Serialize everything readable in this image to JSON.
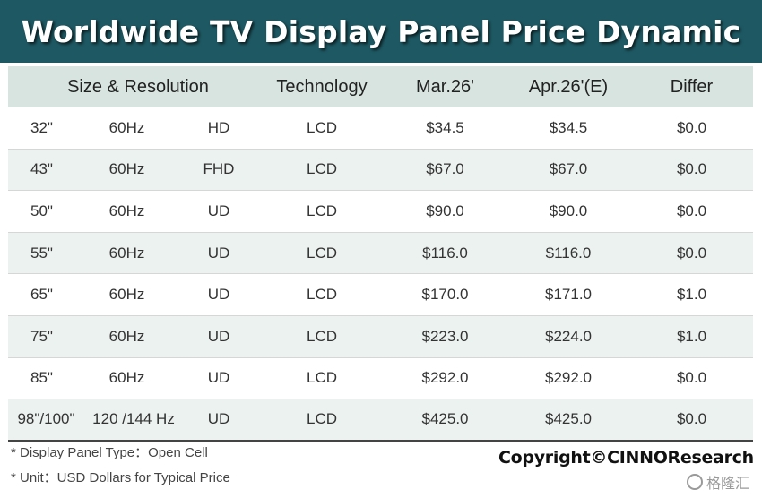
{
  "title": "Worldwide TV Display Panel Price Dynamic",
  "table": {
    "headers": {
      "size_resolution": "Size & Resolution",
      "technology": "Technology",
      "mar": "Mar.26'",
      "apr": "Apr.26'(E)",
      "differ": "Differ"
    },
    "rows": [
      {
        "size": "32\"",
        "hz": "60Hz",
        "res": "HD",
        "tech": "LCD",
        "mar": "$34.5",
        "apr": "$34.5",
        "differ": "$0.0"
      },
      {
        "size": "43\"",
        "hz": "60Hz",
        "res": "FHD",
        "tech": "LCD",
        "mar": "$67.0",
        "apr": "$67.0",
        "differ": "$0.0"
      },
      {
        "size": "50\"",
        "hz": "60Hz",
        "res": "UD",
        "tech": "LCD",
        "mar": "$90.0",
        "apr": "$90.0",
        "differ": "$0.0"
      },
      {
        "size": "55\"",
        "hz": "60Hz",
        "res": "UD",
        "tech": "LCD",
        "mar": "$116.0",
        "apr": "$116.0",
        "differ": "$0.0"
      },
      {
        "size": "65\"",
        "hz": "60Hz",
        "res": "UD",
        "tech": "LCD",
        "mar": "$170.0",
        "apr": "$171.0",
        "differ": "$1.0"
      },
      {
        "size": "75\"",
        "hz": "60Hz",
        "res": "UD",
        "tech": "LCD",
        "mar": "$223.0",
        "apr": "$224.0",
        "differ": "$1.0"
      },
      {
        "size": "85\"",
        "hz": "60Hz",
        "res": "UD",
        "tech": "LCD",
        "mar": "$292.0",
        "apr": "$292.0",
        "differ": "$0.0"
      },
      {
        "size": "98\"/100\"",
        "hz": "120 /144 Hz",
        "res": "UD",
        "tech": "LCD",
        "mar": "$425.0",
        "apr": "$425.0",
        "differ": "$0.0"
      }
    ]
  },
  "footnotes": {
    "panel_type": "* Display Panel Type：Open Cell",
    "unit": "* Unit：USD Dollars for Typical Price"
  },
  "copyright": "Copyright©CINNOResearch",
  "watermark": "格隆汇",
  "colors": {
    "title_bg": "#1e5963",
    "header_bg": "#d8e4e0",
    "alt_row_bg": "#ecf2f0"
  }
}
